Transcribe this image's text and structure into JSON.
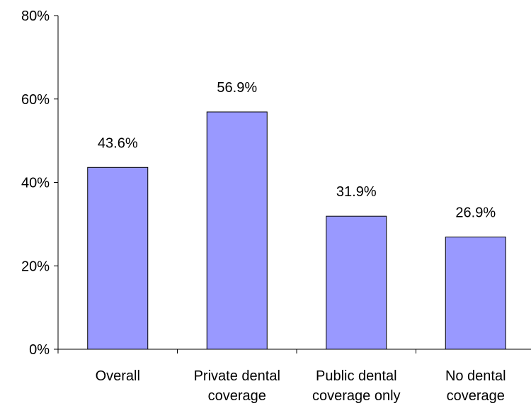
{
  "chart_data": {
    "type": "bar",
    "categories": [
      [
        "Overall"
      ],
      [
        "Private dental",
        "coverage"
      ],
      [
        "Public dental",
        "coverage only"
      ],
      [
        "No dental",
        "coverage"
      ]
    ],
    "values": [
      43.6,
      56.9,
      31.9,
      26.9
    ],
    "value_labels": [
      "43.6%",
      "56.9%",
      "31.9%",
      "26.9%"
    ],
    "title": "",
    "xlabel": "",
    "ylabel": "",
    "ylim": [
      0,
      80
    ],
    "y_ticks": [
      0,
      20,
      40,
      60,
      80
    ],
    "y_tick_labels": [
      "0%",
      "20%",
      "40%",
      "60%",
      "80%"
    ],
    "grid": false,
    "legend": "none",
    "colors": {
      "bar_fill": "#9999ff",
      "bar_stroke": "#000000",
      "axis": "#000000"
    }
  }
}
